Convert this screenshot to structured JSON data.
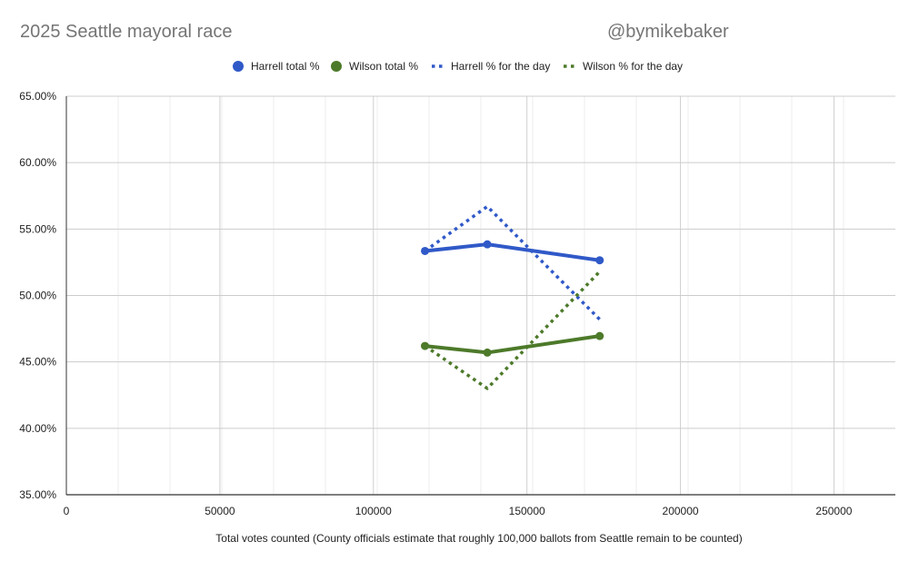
{
  "header": {
    "title": "2025 Seattle mayoral race",
    "credit": "@bymikebaker"
  },
  "chart_data": {
    "type": "line",
    "title": "2025 Seattle mayoral race",
    "xlabel": "Total votes counted (County officials estimate that roughly 100,000 ballots from Seattle remain to be counted)",
    "ylabel": "",
    "xlim": [
      0,
      270000
    ],
    "ylim": [
      35,
      65
    ],
    "x_ticks": [
      0,
      50000,
      100000,
      150000,
      200000,
      250000
    ],
    "x_tick_labels": [
      "0",
      "50000",
      "100000",
      "150000",
      "200000",
      "250000"
    ],
    "y_ticks": [
      35,
      40,
      45,
      50,
      55,
      60,
      65
    ],
    "y_tick_labels": [
      "35.00%",
      "40.00%",
      "45.00%",
      "50.00%",
      "55.00%",
      "60.00%",
      "65.00%"
    ],
    "grid": true,
    "legend_position": "top",
    "series": [
      {
        "name": "Harrell total %",
        "color": "#3059c8",
        "style": "solid",
        "markers": true,
        "x": [
          116800,
          137100,
          173700
        ],
        "y": [
          53.35,
          53.85,
          52.65
        ]
      },
      {
        "name": "Wilson total %",
        "color": "#4d7a2a",
        "style": "solid",
        "markers": true,
        "x": [
          116800,
          137100,
          173700
        ],
        "y": [
          46.2,
          45.7,
          46.95
        ]
      },
      {
        "name": "Harrell % for the day",
        "color": "#3059c8",
        "style": "dotted",
        "markers": false,
        "x": [
          116800,
          137100,
          173700
        ],
        "y": [
          53.35,
          56.7,
          48.2
        ]
      },
      {
        "name": "Wilson % for the day",
        "color": "#4d7a2a",
        "style": "dotted",
        "markers": false,
        "x": [
          116800,
          137100,
          173700
        ],
        "y": [
          46.2,
          43.0,
          51.8
        ]
      }
    ]
  }
}
